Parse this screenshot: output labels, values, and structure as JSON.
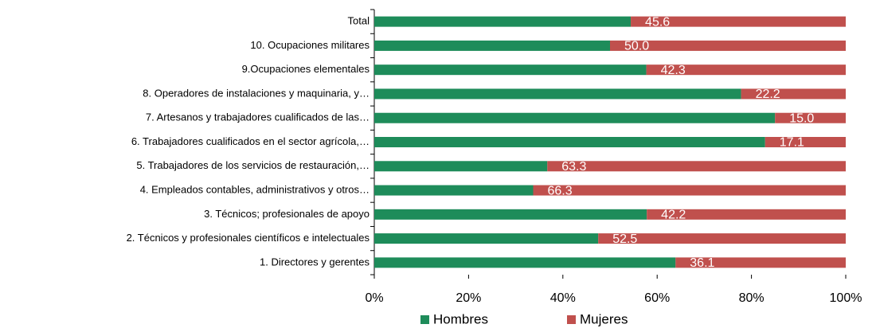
{
  "chart_data": {
    "type": "stacked_bar_horizontal",
    "categories": [
      "Total",
      "10. Ocupaciones militares",
      "9.Ocupaciones elementales",
      "8. Operadores de instalaciones y maquinaria, y…",
      "7. Artesanos y trabajadores cualificados de las…",
      "6. Trabajadores cualificados en el sector agrícola,…",
      "5. Trabajadores de los servicios de restauración,…",
      "4. Empleados contables, administrativos y otros…",
      "3. Técnicos; profesionales de apoyo",
      "2. Técnicos y profesionales científicos e intelectuales",
      "1. Directores y gerentes"
    ],
    "series": [
      {
        "name": "Hombres",
        "color": "#1e8c5a",
        "values": [
          54.4,
          50.0,
          57.7,
          77.8,
          85.0,
          82.9,
          36.7,
          33.7,
          57.8,
          47.5,
          63.9
        ]
      },
      {
        "name": "Mujeres",
        "color": "#c0504d",
        "values": [
          45.6,
          50.0,
          42.3,
          22.2,
          15.0,
          17.1,
          63.3,
          66.3,
          42.2,
          52.5,
          36.1
        ],
        "value_labels": [
          "45.6",
          "50.0",
          "42.3",
          "22.2",
          "15.0",
          "17.1",
          "63.3",
          "66.3",
          "42.2",
          "52.5",
          "36.1"
        ]
      }
    ],
    "xlim": [
      0,
      100
    ],
    "xticks": [
      {
        "value": 0,
        "label": "0%"
      },
      {
        "value": 20,
        "label": "20%"
      },
      {
        "value": 40,
        "label": "40%"
      },
      {
        "value": 60,
        "label": "60%"
      },
      {
        "value": 80,
        "label": "80%"
      },
      {
        "value": 100,
        "label": "100%"
      }
    ],
    "legend": "bottom"
  }
}
